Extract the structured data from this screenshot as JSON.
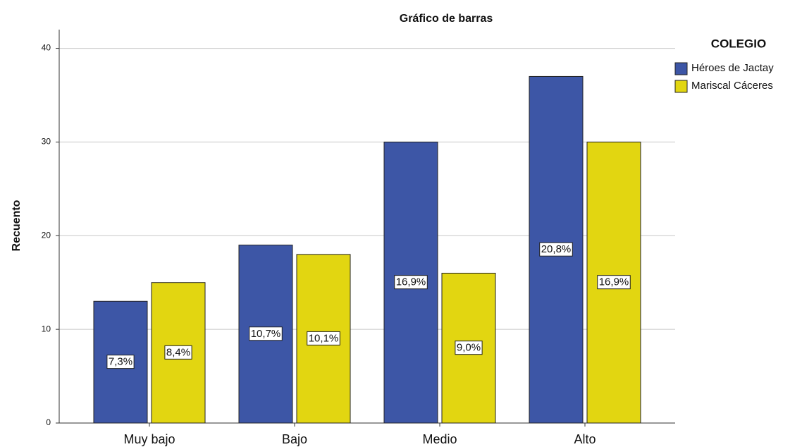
{
  "chart_data": {
    "type": "bar",
    "title": "Gráfico de barras",
    "y_label": "Recuento",
    "categories": [
      "Muy bajo",
      "Bajo",
      "Medio",
      "Alto"
    ],
    "series": [
      {
        "name": "Héroes de Jactay",
        "color": "#3d56a6",
        "values": [
          13,
          19,
          30,
          37
        ],
        "data_labels": [
          "7,3%",
          "10,7%",
          "16,9%",
          "20,8%"
        ]
      },
      {
        "name": "Mariscal Cáceres",
        "color": "#e2d611",
        "values": [
          15,
          18,
          16,
          30
        ],
        "data_labels": [
          "8,4%",
          "10,1%",
          "9,0%",
          "16,9%"
        ]
      }
    ],
    "ylim": [
      0,
      42
    ],
    "yticks": [
      0,
      10,
      20,
      30,
      40
    ],
    "grid": true,
    "legend": {
      "title": "COLEGIO",
      "position": "right"
    }
  }
}
